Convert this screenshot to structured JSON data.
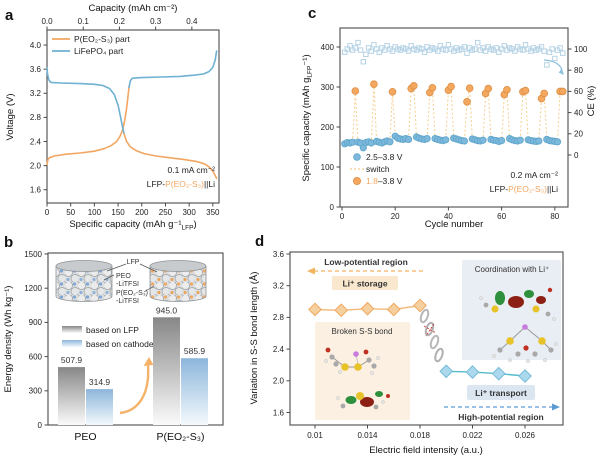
{
  "chart_data": [
    {
      "panel": "a",
      "type": "line",
      "top_axis": {
        "label": "Capacity (mAh cm⁻²)",
        "ticks": [
          0,
          0.1,
          0.2,
          0.3,
          0.4
        ],
        "tick_labels": [
          "0.0",
          "0.1",
          "0.2",
          "0.3",
          "0.4"
        ],
        "max": 0.475
      },
      "x_axis": {
        "label_pre": "Specific capacity (mAh g⁻¹",
        "label_sub": "LFP",
        "label_post": ")",
        "ticks": [
          0,
          50,
          100,
          150,
          200,
          250,
          300,
          350
        ],
        "max": 363
      },
      "y_axis": {
        "label": "Voltage (V)",
        "ticks": [
          1.6,
          2.0,
          2.4,
          2.8,
          3.2,
          3.6,
          4.0
        ],
        "tick_labels": [
          "1.6",
          "2.0",
          "2.4",
          "2.8",
          "3.2",
          "3.6",
          "4.0"
        ],
        "min": 1.38,
        "max": 4.25
      },
      "legend": [
        {
          "label": "P(EO₂-S₃) part",
          "color": "#F2A661"
        },
        {
          "label": "LiFePO₄ part",
          "color": "#6FB1D2"
        }
      ],
      "annotation": {
        "rate": "0.1 mA cm⁻²",
        "cell_pre": "LFP-",
        "cell_mid": "P(EO₂-S₃)",
        "cell_post": "||Li"
      },
      "series": [
        {
          "name": "P(EO₂-S₃) part charge",
          "color": "#F2A661",
          "points": [
            [
              0,
              2.02
            ],
            [
              2,
              2.1
            ],
            [
              5,
              2.13
            ],
            [
              15,
              2.16
            ],
            [
              40,
              2.19
            ],
            [
              70,
              2.21
            ],
            [
              100,
              2.24
            ],
            [
              120,
              2.28
            ],
            [
              135,
              2.33
            ],
            [
              147,
              2.4
            ],
            [
              155,
              2.5
            ],
            [
              160,
              2.6
            ],
            [
              164,
              2.75
            ],
            [
              168,
              2.95
            ],
            [
              171,
              3.15
            ],
            [
              173,
              3.3
            ]
          ]
        },
        {
          "name": "LiFePO₄ part charge",
          "color": "#6FB1D2",
          "points": [
            [
              173,
              3.3
            ],
            [
              176,
              3.41
            ],
            [
              180,
              3.45
            ],
            [
              200,
              3.46
            ],
            [
              240,
              3.47
            ],
            [
              280,
              3.48
            ],
            [
              310,
              3.5
            ],
            [
              330,
              3.52
            ],
            [
              342,
              3.56
            ],
            [
              350,
              3.63
            ],
            [
              355,
              3.75
            ],
            [
              358,
              3.9
            ]
          ]
        },
        {
          "name": "LiFePO₄ part discharge",
          "color": "#6FB1D2",
          "points": [
            [
              0,
              3.62
            ],
            [
              1.5,
              3.5
            ],
            [
              4,
              3.42
            ],
            [
              8,
              3.38
            ],
            [
              30,
              3.37
            ],
            [
              70,
              3.36
            ],
            [
              100,
              3.35
            ],
            [
              118,
              3.33
            ],
            [
              132,
              3.28
            ],
            [
              142,
              3.18
            ],
            [
              150,
              3.0
            ],
            [
              156,
              2.78
            ],
            [
              160,
              2.62
            ],
            [
              163,
              2.52
            ]
          ]
        },
        {
          "name": "P(EO₂-S₃) part discharge",
          "color": "#F2A661",
          "points": [
            [
              163,
              2.52
            ],
            [
              168,
              2.4
            ],
            [
              176,
              2.31
            ],
            [
              188,
              2.25
            ],
            [
              205,
              2.2
            ],
            [
              230,
              2.16
            ],
            [
              260,
              2.13
            ],
            [
              290,
              2.1
            ],
            [
              315,
              2.07
            ],
            [
              332,
              2.03
            ],
            [
              342,
              1.98
            ],
            [
              350,
              1.91
            ],
            [
              356,
              1.82
            ],
            [
              358,
              1.79
            ]
          ]
        }
      ]
    },
    {
      "panel": "b",
      "type": "bar",
      "y_axis": {
        "label": "Energy density (Wh kg⁻¹)",
        "ticks": [
          0,
          300,
          600,
          900,
          1200,
          1500
        ],
        "max": 1500
      },
      "categories": [
        "PEO",
        "P(EO₂-S₃)"
      ],
      "category_colors": [
        "#1a1a1a",
        "#F2A661"
      ],
      "series": [
        {
          "name": "based on LFP",
          "values": [
            507.9,
            945.0
          ],
          "fill": "gray"
        },
        {
          "name": "based on cathode",
          "values": [
            314.9,
            585.9
          ],
          "fill": "blue"
        }
      ],
      "legend": [
        {
          "label": "based on LFP"
        },
        {
          "label": "based on cathode"
        }
      ],
      "inset": {
        "lfp": "LFP",
        "peo": "PEO",
        "peo_salt": "-LiTFSI",
        "pes": "P(EO₂-S₃)",
        "pes_salt": "-LiTFSI"
      }
    },
    {
      "panel": "c",
      "type": "scatter",
      "x_axis": {
        "label": "Cycle number",
        "ticks": [
          0,
          20,
          40,
          60,
          80
        ]
      },
      "y_axis": {
        "label_pre": "Specific capacity (mAh g",
        "label_sub": "LFP",
        "label_post": "⁻¹)",
        "ticks": [
          0,
          100,
          200,
          300,
          400
        ]
      },
      "y_right": {
        "label": "CE (%)",
        "ticks": [
          0,
          20,
          40,
          60,
          80,
          100
        ]
      },
      "legend": [
        {
          "label": "2.5–3.8 V",
          "color": "#7CB9DC"
        },
        {
          "label": "switch",
          "color": "#F6CE8D"
        },
        {
          "label_orange": "1.8",
          "label_rest": "–3.8 V",
          "color": "#F3A75F"
        }
      ],
      "annotation": {
        "rate": "0.2 mA cm⁻²",
        "cell_pre": "LFP-",
        "cell_mid": "P(EO₂-S₃)",
        "cell_post": "||Li"
      },
      "blue_points": [
        [
          1,
          158
        ],
        [
          2,
          161
        ],
        [
          3,
          160
        ],
        [
          4,
          162
        ],
        [
          6,
          162
        ],
        [
          7,
          160
        ],
        [
          8,
          148
        ],
        [
          9,
          161
        ],
        [
          10,
          163
        ],
        [
          11,
          160
        ],
        [
          13,
          164
        ],
        [
          14,
          162
        ],
        [
          15,
          160
        ],
        [
          16,
          163
        ],
        [
          17,
          165
        ],
        [
          18,
          163
        ],
        [
          20,
          177
        ],
        [
          21,
          172
        ],
        [
          22,
          170
        ],
        [
          23,
          169
        ],
        [
          24,
          171
        ],
        [
          25,
          169
        ],
        [
          28,
          175
        ],
        [
          29,
          172
        ],
        [
          30,
          170
        ],
        [
          31,
          169
        ],
        [
          32,
          171
        ],
        [
          35,
          171
        ],
        [
          36,
          169
        ],
        [
          37,
          167
        ],
        [
          38,
          166
        ],
        [
          39,
          168
        ],
        [
          42,
          172
        ],
        [
          43,
          170
        ],
        [
          44,
          168
        ],
        [
          45,
          166
        ],
        [
          46,
          165
        ],
        [
          49,
          170
        ],
        [
          50,
          168
        ],
        [
          51,
          166
        ],
        [
          52,
          165
        ],
        [
          53,
          167
        ],
        [
          56,
          169
        ],
        [
          57,
          167
        ],
        [
          58,
          166
        ],
        [
          59,
          164
        ],
        [
          60,
          166
        ],
        [
          63,
          171
        ],
        [
          64,
          168
        ],
        [
          65,
          166
        ],
        [
          66,
          165
        ],
        [
          67,
          167
        ],
        [
          70,
          168
        ],
        [
          71,
          166
        ],
        [
          72,
          165
        ],
        [
          73,
          164
        ],
        [
          74,
          165
        ],
        [
          77,
          169
        ],
        [
          78,
          166
        ],
        [
          79,
          165
        ],
        [
          80,
          164
        ],
        [
          81,
          163
        ]
      ],
      "orange_points": [
        [
          5,
          290
        ],
        [
          12,
          307
        ],
        [
          19,
          288
        ],
        [
          26,
          296
        ],
        [
          27,
          303
        ],
        [
          33,
          286
        ],
        [
          34,
          298
        ],
        [
          40,
          292
        ],
        [
          41,
          301
        ],
        [
          47,
          263
        ],
        [
          48,
          297
        ],
        [
          54,
          284
        ],
        [
          55,
          296
        ],
        [
          61,
          281
        ],
        [
          62,
          293
        ],
        [
          68,
          288
        ],
        [
          69,
          291
        ],
        [
          75,
          271
        ],
        [
          76,
          284
        ],
        [
          82,
          289
        ],
        [
          83,
          289
        ]
      ],
      "ce_points": [
        [
          1,
          97
        ],
        [
          2,
          100
        ],
        [
          3,
          103
        ],
        [
          4,
          99
        ],
        [
          5,
          101
        ],
        [
          6,
          106
        ],
        [
          7,
          99
        ],
        [
          8,
          88
        ],
        [
          9,
          95
        ],
        [
          10,
          101
        ],
        [
          11,
          98
        ],
        [
          12,
          104
        ],
        [
          13,
          100
        ],
        [
          14,
          97
        ],
        [
          15,
          101
        ],
        [
          16,
          99
        ],
        [
          17,
          103
        ],
        [
          18,
          100
        ],
        [
          19,
          98
        ],
        [
          20,
          102
        ],
        [
          21,
          100
        ],
        [
          22,
          99
        ],
        [
          23,
          101
        ],
        [
          24,
          100
        ],
        [
          25,
          98
        ],
        [
          26,
          103
        ],
        [
          27,
          100
        ],
        [
          28,
          99
        ],
        [
          29,
          101
        ],
        [
          30,
          100
        ],
        [
          31,
          97
        ],
        [
          32,
          102
        ],
        [
          33,
          99
        ],
        [
          34,
          101
        ],
        [
          35,
          100
        ],
        [
          36,
          98
        ],
        [
          37,
          103
        ],
        [
          38,
          100
        ],
        [
          39,
          99
        ],
        [
          40,
          104
        ],
        [
          41,
          100
        ],
        [
          42,
          98
        ],
        [
          43,
          101
        ],
        [
          44,
          99
        ],
        [
          45,
          100
        ],
        [
          46,
          102
        ],
        [
          47,
          96
        ],
        [
          48,
          101
        ],
        [
          49,
          99
        ],
        [
          50,
          100
        ],
        [
          51,
          106
        ],
        [
          52,
          99
        ],
        [
          53,
          101
        ],
        [
          54,
          98
        ],
        [
          55,
          102
        ],
        [
          56,
          100
        ],
        [
          57,
          99
        ],
        [
          58,
          101
        ],
        [
          59,
          97
        ],
        [
          60,
          100
        ],
        [
          61,
          103
        ],
        [
          62,
          99
        ],
        [
          63,
          101
        ],
        [
          64,
          100
        ],
        [
          65,
          98
        ],
        [
          66,
          102
        ],
        [
          67,
          100
        ],
        [
          68,
          99
        ],
        [
          69,
          104
        ],
        [
          70,
          100
        ],
        [
          71,
          98
        ],
        [
          72,
          101
        ],
        [
          73,
          99
        ],
        [
          74,
          100
        ],
        [
          75,
          102
        ],
        [
          76,
          98
        ],
        [
          77,
          85
        ],
        [
          78,
          97
        ],
        [
          79,
          100
        ],
        [
          80,
          91
        ],
        [
          81,
          99
        ],
        [
          82,
          101
        ],
        [
          83,
          96
        ]
      ]
    },
    {
      "panel": "d",
      "type": "line",
      "x_axis": {
        "label": "Electric field intensity (a.u.)",
        "ticks": [
          0.01,
          0.014,
          0.018,
          0.022,
          0.026
        ],
        "tick_labels": [
          "0.01",
          "0.014",
          "0.018",
          "0.022",
          "0.026"
        ]
      },
      "y_axis": {
        "label": "Variation in S-S bond length (Å)",
        "ticks": [
          1.6,
          2.0,
          2.4,
          2.8,
          3.2,
          3.6
        ],
        "tick_labels": [
          "1.6",
          "2.0",
          "2.4",
          "2.8",
          "3.2",
          "3.6"
        ]
      },
      "series": [
        {
          "name": "low-potential branch",
          "marker": "diamond",
          "line_color": "#F2BA7A",
          "fill": "#F6CF9F",
          "stroke": "#EFA860",
          "points": [
            [
              0.01,
              2.9
            ],
            [
              0.012,
              2.89
            ],
            [
              0.014,
              2.91
            ],
            [
              0.016,
              2.9
            ],
            [
              0.018,
              2.95
            ]
          ]
        },
        {
          "name": "high-potential branch",
          "marker": "diamond",
          "line_color": "#55BACA",
          "fill": "#ABD8EC",
          "stroke": "#74BCD9",
          "points": [
            [
              0.02,
              2.12
            ],
            [
              0.022,
              2.11
            ],
            [
              0.024,
              2.09
            ],
            [
              0.026,
              2.06
            ]
          ]
        }
      ],
      "annotations": {
        "low_region": "Low-potential region",
        "li_storage": "Li⁺ storage",
        "coordination": "Coordination with Li⁺",
        "broken_bond": "Broken S-S bond",
        "li_transport": "Li⁺ transport",
        "high_region": "High-potential region"
      }
    }
  ]
}
